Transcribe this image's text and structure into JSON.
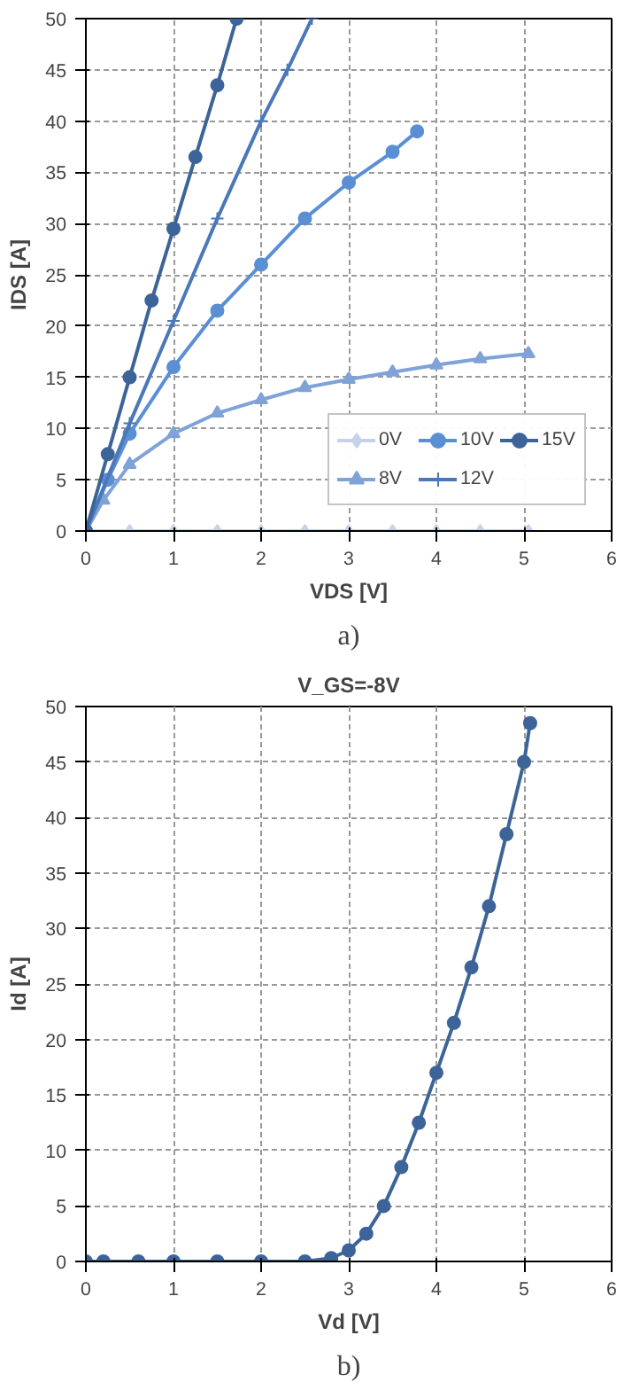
{
  "chart_data": [
    {
      "type": "line",
      "xlabel": "VDS [V]",
      "ylabel": "IDS [A]",
      "annotations": [
        "a)"
      ],
      "xlim": [
        0,
        6
      ],
      "ylim": [
        0,
        50
      ],
      "xticks": [
        0,
        1,
        2,
        3,
        4,
        5,
        6
      ],
      "yticks": [
        0,
        5,
        10,
        15,
        20,
        25,
        30,
        35,
        40,
        45,
        50
      ],
      "grid": true,
      "legend": "bottom right",
      "line_style": "solid",
      "series": [
        {
          "name": "0V",
          "color": "#c5d3ea",
          "marker": "diamond",
          "x": [
            0,
            0.5,
            1,
            1.5,
            2,
            2.5,
            3,
            3.5,
            4,
            4.5,
            5.05
          ],
          "values": [
            0,
            0,
            0,
            0,
            0,
            0,
            0,
            0,
            0,
            0,
            0
          ]
        },
        {
          "name": "8V",
          "color": "#7fa3d8",
          "marker": "triangle",
          "x": [
            0,
            0.2,
            0.5,
            1,
            1.5,
            2,
            2.5,
            3,
            3.5,
            4,
            4.5,
            5.05
          ],
          "values": [
            0,
            3,
            6.5,
            9.5,
            11.5,
            12.8,
            14,
            14.8,
            15.5,
            16.2,
            16.8,
            17.3
          ]
        },
        {
          "name": "10V",
          "color": "#5b8fd4",
          "marker": "circle",
          "x": [
            0,
            0.25,
            0.5,
            1,
            1.5,
            2,
            2.5,
            3,
            3.5,
            3.78
          ],
          "values": [
            0,
            5,
            9.5,
            16,
            21.5,
            26,
            30.5,
            34,
            37,
            39
          ]
        },
        {
          "name": "12V",
          "color": "#4a78b8",
          "marker": "cross",
          "x": [
            0,
            0.5,
            1,
            1.5,
            2,
            2.3,
            2.58
          ],
          "values": [
            0,
            10.5,
            20.5,
            30.5,
            40,
            45,
            50
          ]
        },
        {
          "name": "15V",
          "color": "#3d6499",
          "marker": "circle",
          "x": [
            0,
            0.25,
            0.5,
            0.75,
            1,
            1.25,
            1.5,
            1.72
          ],
          "values": [
            0,
            7.5,
            15,
            22.5,
            29.5,
            36.5,
            43.5,
            50
          ]
        }
      ]
    },
    {
      "type": "line",
      "title": "V_GS=-8V",
      "xlabel": "Vd [V]",
      "ylabel": "Id [A]",
      "annotations": [
        "b)"
      ],
      "xlim": [
        0,
        6
      ],
      "ylim": [
        0,
        50
      ],
      "xticks": [
        0,
        1,
        2,
        3,
        4,
        5,
        6
      ],
      "yticks": [
        0,
        5,
        10,
        15,
        20,
        25,
        30,
        35,
        40,
        45,
        50
      ],
      "grid": true,
      "legend": false,
      "line_style": "solid",
      "marker": "circle",
      "series": [
        {
          "color": "#3d6499",
          "x": [
            0,
            0.2,
            0.6,
            1,
            1.5,
            2,
            2.5,
            2.8,
            3,
            3.2,
            3.4,
            3.6,
            3.8,
            4,
            4.2,
            4.4,
            4.6,
            4.8,
            5,
            5.07
          ],
          "values": [
            0,
            0,
            0,
            0,
            0,
            0,
            0,
            0.3,
            1,
            2.5,
            5,
            8.5,
            12.5,
            17,
            21.5,
            26.5,
            32,
            38.5,
            45,
            48.5
          ]
        }
      ]
    }
  ]
}
